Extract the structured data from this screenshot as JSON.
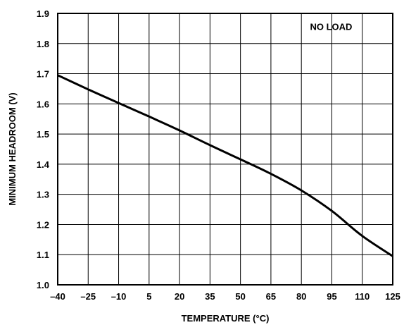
{
  "chart_data": {
    "type": "line",
    "title": "",
    "xlabel": "TEMPERATURE (°C)",
    "ylabel": "MINIMUM HEADROOM (V)",
    "xlim": [
      -40,
      125
    ],
    "ylim": [
      1.0,
      1.9
    ],
    "x_ticks": [
      "–40",
      "–25",
      "–10",
      "5",
      "20",
      "35",
      "50",
      "65",
      "80",
      "95",
      "110",
      "125"
    ],
    "y_ticks": [
      "1.0",
      "1.1",
      "1.2",
      "1.3",
      "1.4",
      "1.5",
      "1.6",
      "1.7",
      "1.8",
      "1.9"
    ],
    "grid": true,
    "annotation": "NO LOAD",
    "series": [
      {
        "x": [
          -40,
          -25,
          -10,
          5,
          20,
          35,
          50,
          65,
          80,
          95,
          110,
          125
        ],
        "y": [
          1.695,
          1.648,
          1.603,
          1.558,
          1.512,
          1.463,
          1.416,
          1.368,
          1.313,
          1.245,
          1.162,
          1.095
        ]
      }
    ]
  }
}
